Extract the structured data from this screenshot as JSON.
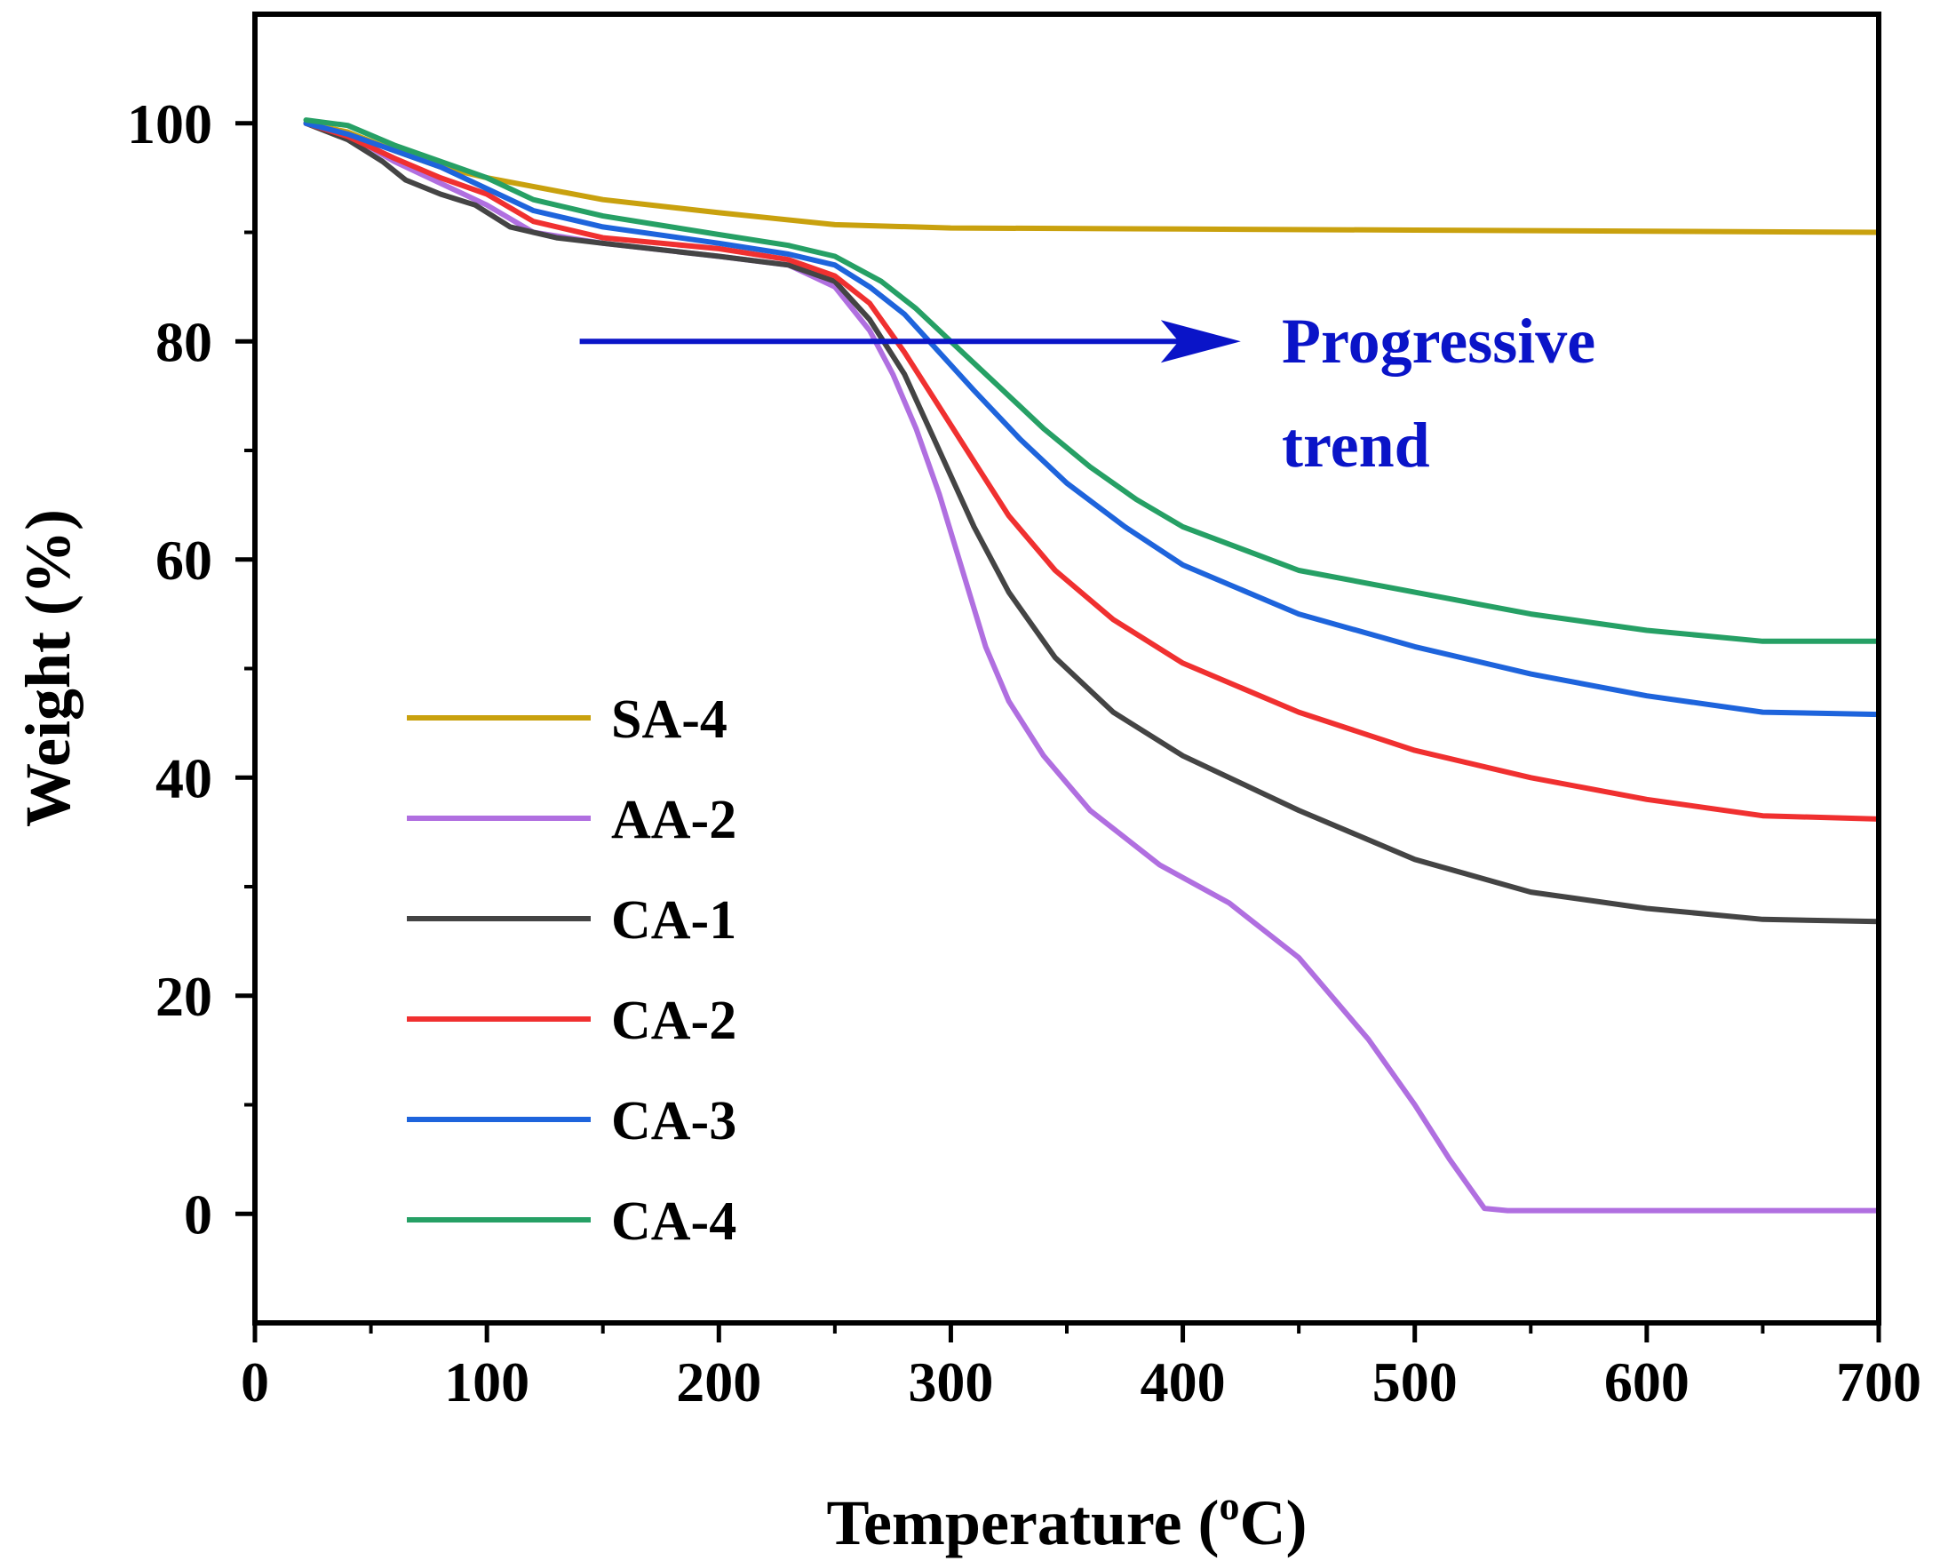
{
  "chart_data": {
    "type": "line",
    "xlabel": "Temperature (",
    "xlabel_sup": "o",
    "xlabel_end": "C)",
    "ylabel": "Weight (%)",
    "xlim": [
      0,
      700
    ],
    "ylim": [
      -10,
      110
    ],
    "x_ticks": [
      0,
      100,
      200,
      300,
      400,
      500,
      600,
      700
    ],
    "y_ticks": [
      0,
      20,
      40,
      60,
      80,
      100
    ],
    "grid": false,
    "legend_position": "lower-left",
    "annotation": {
      "lines": [
        "Progressive",
        "trend"
      ],
      "color": "#0a14c8",
      "arrow_from": [
        140,
        80
      ],
      "arrow_to": [
        425,
        80
      ]
    },
    "series": [
      {
        "name": "SA-4",
        "color": "#c9a10e",
        "points": [
          [
            22,
            100
          ],
          [
            40,
            99.2
          ],
          [
            60,
            97.5
          ],
          [
            80,
            96
          ],
          [
            100,
            95
          ],
          [
            150,
            93
          ],
          [
            200,
            91.8
          ],
          [
            250,
            90.7
          ],
          [
            300,
            90.4
          ],
          [
            400,
            90.3
          ],
          [
            500,
            90.2
          ],
          [
            600,
            90.1
          ],
          [
            700,
            90
          ]
        ]
      },
      {
        "name": "AA-2",
        "color": "#b06fe0",
        "points": [
          [
            22,
            100
          ],
          [
            40,
            99
          ],
          [
            60,
            96.5
          ],
          [
            80,
            94.5
          ],
          [
            100,
            92.5
          ],
          [
            120,
            90
          ],
          [
            150,
            89
          ],
          [
            200,
            87.8
          ],
          [
            230,
            87
          ],
          [
            250,
            85
          ],
          [
            265,
            81
          ],
          [
            275,
            77
          ],
          [
            285,
            72
          ],
          [
            295,
            66
          ],
          [
            305,
            59
          ],
          [
            315,
            52
          ],
          [
            325,
            47
          ],
          [
            340,
            42
          ],
          [
            360,
            37
          ],
          [
            390,
            32
          ],
          [
            420,
            28.5
          ],
          [
            450,
            23.5
          ],
          [
            480,
            16
          ],
          [
            500,
            10
          ],
          [
            515,
            5
          ],
          [
            530,
            0.5
          ],
          [
            540,
            0.3
          ],
          [
            600,
            0.3
          ],
          [
            700,
            0.3
          ]
        ]
      },
      {
        "name": "CA-1",
        "color": "#444444",
        "points": [
          [
            22,
            100
          ],
          [
            40,
            98.5
          ],
          [
            55,
            96.5
          ],
          [
            65,
            94.8
          ],
          [
            80,
            93.5
          ],
          [
            95,
            92.5
          ],
          [
            110,
            90.5
          ],
          [
            130,
            89.5
          ],
          [
            150,
            89
          ],
          [
            200,
            87.8
          ],
          [
            230,
            87
          ],
          [
            250,
            85.5
          ],
          [
            265,
            82
          ],
          [
            280,
            77
          ],
          [
            295,
            70
          ],
          [
            310,
            63
          ],
          [
            325,
            57
          ],
          [
            345,
            51
          ],
          [
            370,
            46
          ],
          [
            400,
            42
          ],
          [
            450,
            37
          ],
          [
            500,
            32.5
          ],
          [
            550,
            29.5
          ],
          [
            600,
            28
          ],
          [
            650,
            27
          ],
          [
            700,
            26.8
          ]
        ]
      },
      {
        "name": "CA-2",
        "color": "#f03030",
        "points": [
          [
            22,
            100
          ],
          [
            40,
            98.8
          ],
          [
            60,
            96.8
          ],
          [
            80,
            95
          ],
          [
            100,
            93.5
          ],
          [
            120,
            91
          ],
          [
            150,
            89.5
          ],
          [
            200,
            88.5
          ],
          [
            230,
            87.5
          ],
          [
            250,
            86
          ],
          [
            265,
            83.5
          ],
          [
            280,
            79
          ],
          [
            295,
            74
          ],
          [
            310,
            69
          ],
          [
            325,
            64
          ],
          [
            345,
            59
          ],
          [
            370,
            54.5
          ],
          [
            400,
            50.5
          ],
          [
            450,
            46
          ],
          [
            500,
            42.5
          ],
          [
            550,
            40
          ],
          [
            600,
            38
          ],
          [
            650,
            36.5
          ],
          [
            700,
            36.2
          ]
        ]
      },
      {
        "name": "CA-3",
        "color": "#1e64dc",
        "points": [
          [
            22,
            100
          ],
          [
            40,
            99
          ],
          [
            60,
            97.5
          ],
          [
            80,
            96
          ],
          [
            100,
            94
          ],
          [
            120,
            92
          ],
          [
            150,
            90.5
          ],
          [
            200,
            89
          ],
          [
            230,
            88
          ],
          [
            250,
            87
          ],
          [
            265,
            85
          ],
          [
            280,
            82.5
          ],
          [
            295,
            79
          ],
          [
            310,
            75.5
          ],
          [
            330,
            71
          ],
          [
            350,
            67
          ],
          [
            375,
            63
          ],
          [
            400,
            59.5
          ],
          [
            450,
            55
          ],
          [
            500,
            52
          ],
          [
            550,
            49.5
          ],
          [
            600,
            47.5
          ],
          [
            650,
            46
          ],
          [
            700,
            45.8
          ]
        ]
      },
      {
        "name": "CA-4",
        "color": "#26a065",
        "points": [
          [
            22,
            100.3
          ],
          [
            40,
            99.8
          ],
          [
            60,
            98
          ],
          [
            80,
            96.5
          ],
          [
            100,
            95
          ],
          [
            120,
            93
          ],
          [
            150,
            91.5
          ],
          [
            200,
            89.8
          ],
          [
            230,
            88.8
          ],
          [
            250,
            87.8
          ],
          [
            270,
            85.5
          ],
          [
            285,
            83
          ],
          [
            300,
            80
          ],
          [
            320,
            76
          ],
          [
            340,
            72
          ],
          [
            360,
            68.5
          ],
          [
            380,
            65.5
          ],
          [
            400,
            63
          ],
          [
            450,
            59
          ],
          [
            500,
            57
          ],
          [
            550,
            55
          ],
          [
            600,
            53.5
          ],
          [
            650,
            52.5
          ],
          [
            700,
            52.5
          ]
        ]
      }
    ]
  }
}
